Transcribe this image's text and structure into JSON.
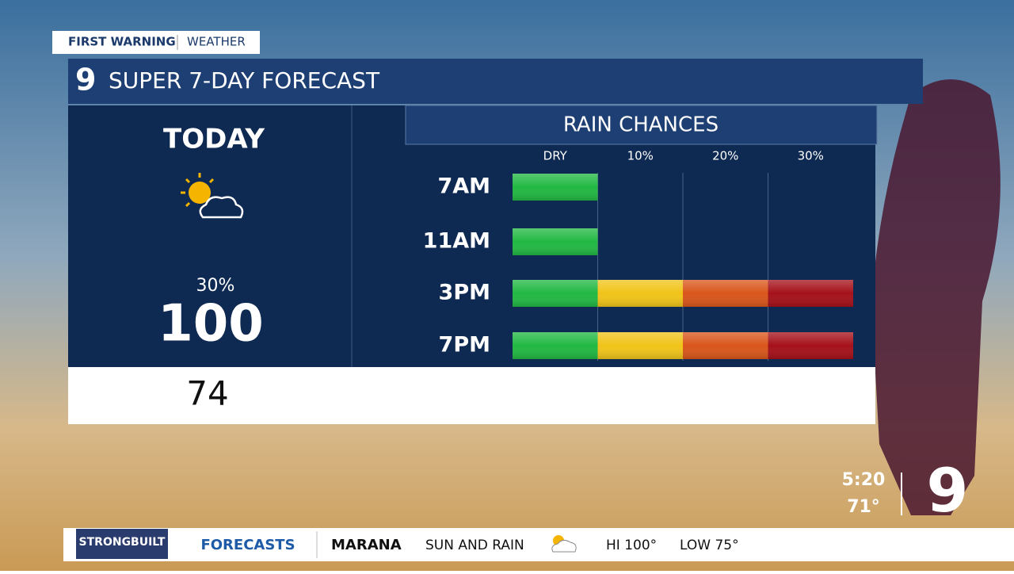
{
  "header": {
    "brand": "FIRST WARNING",
    "section": "WEATHER",
    "logo": "9",
    "title": "SUPER 7-DAY FORECAST"
  },
  "today": {
    "label": "TODAY",
    "rain_chance": "30%",
    "high": "100",
    "low": "74"
  },
  "chart_data": {
    "type": "bar",
    "title": "RAIN CHANCES",
    "categories": [
      "7AM",
      "11AM",
      "3PM",
      "7PM"
    ],
    "values": [
      0,
      0,
      30,
      30
    ],
    "xlim": [
      -10,
      30
    ],
    "xticks": [
      {
        "value": 0,
        "label": "DRY"
      },
      {
        "value": 10,
        "label": "10%"
      },
      {
        "value": 20,
        "label": "20%"
      },
      {
        "value": 30,
        "label": "30%"
      }
    ],
    "segment_colors": [
      "#22b843",
      "#f0c419",
      "#d9561b",
      "#a5111a"
    ],
    "grid": true
  },
  "ticker": {
    "sponsor": "STRONGBUILT",
    "label": "FORECASTS",
    "city": "MARANA",
    "condition": "SUN AND RAIN",
    "hi": "HI 100°",
    "low": "LOW 75°"
  },
  "clock": {
    "time": "5:20",
    "temp": "71°",
    "logo": "9"
  }
}
